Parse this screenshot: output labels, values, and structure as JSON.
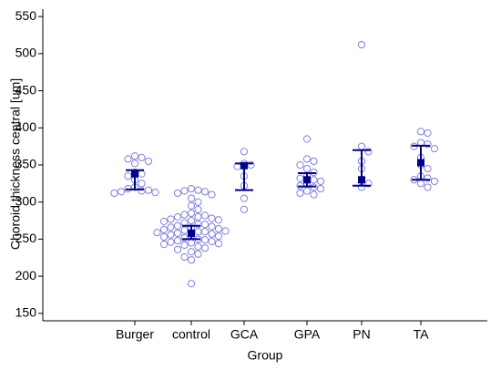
{
  "chart_data": {
    "type": "strip",
    "ylabel": "Choroid thickness central [um]",
    "xlabel": "Group",
    "categories": [
      "Burger",
      "control",
      "GCA",
      "GPA",
      "PN",
      "TA"
    ],
    "points": [
      [
        362,
        360,
        358,
        355,
        352,
        340,
        338,
        335,
        330,
        325,
        320,
        318,
        316,
        315,
        314,
        313,
        312
      ],
      [
        318,
        316,
        315,
        314,
        312,
        310,
        305,
        300,
        295,
        290,
        285,
        283,
        282,
        280,
        280,
        278,
        277,
        276,
        275,
        274,
        272,
        270,
        270,
        268,
        267,
        266,
        265,
        264,
        263,
        262,
        261,
        260,
        260,
        259,
        258,
        257,
        256,
        255,
        254,
        253,
        252,
        250,
        249,
        248,
        247,
        246,
        245,
        244,
        243,
        242,
        240,
        238,
        236,
        233,
        230,
        226,
        222,
        190
      ],
      [
        368,
        352,
        350,
        348,
        335,
        322,
        305,
        290
      ],
      [
        385,
        358,
        355,
        350,
        345,
        340,
        335,
        332,
        330,
        328,
        325,
        322,
        320,
        318,
        315,
        312,
        310
      ],
      [
        512,
        375,
        368,
        355,
        345,
        330,
        325,
        320
      ],
      [
        395,
        393,
        380,
        378,
        375,
        372,
        360,
        350,
        345,
        335,
        332,
        330,
        328,
        325,
        320
      ]
    ],
    "means": [
      338,
      258,
      349,
      330,
      330,
      353
    ],
    "ci_low": [
      317,
      250,
      316,
      321,
      322,
      330
    ],
    "ci_high": [
      343,
      268,
      352,
      339,
      370,
      376
    ],
    "point_color": "#8080e0",
    "mean_color": "#00008b",
    "ylim": [
      140,
      560
    ],
    "yticks": [
      150,
      200,
      250,
      300,
      350,
      400,
      450,
      500,
      550
    ]
  }
}
